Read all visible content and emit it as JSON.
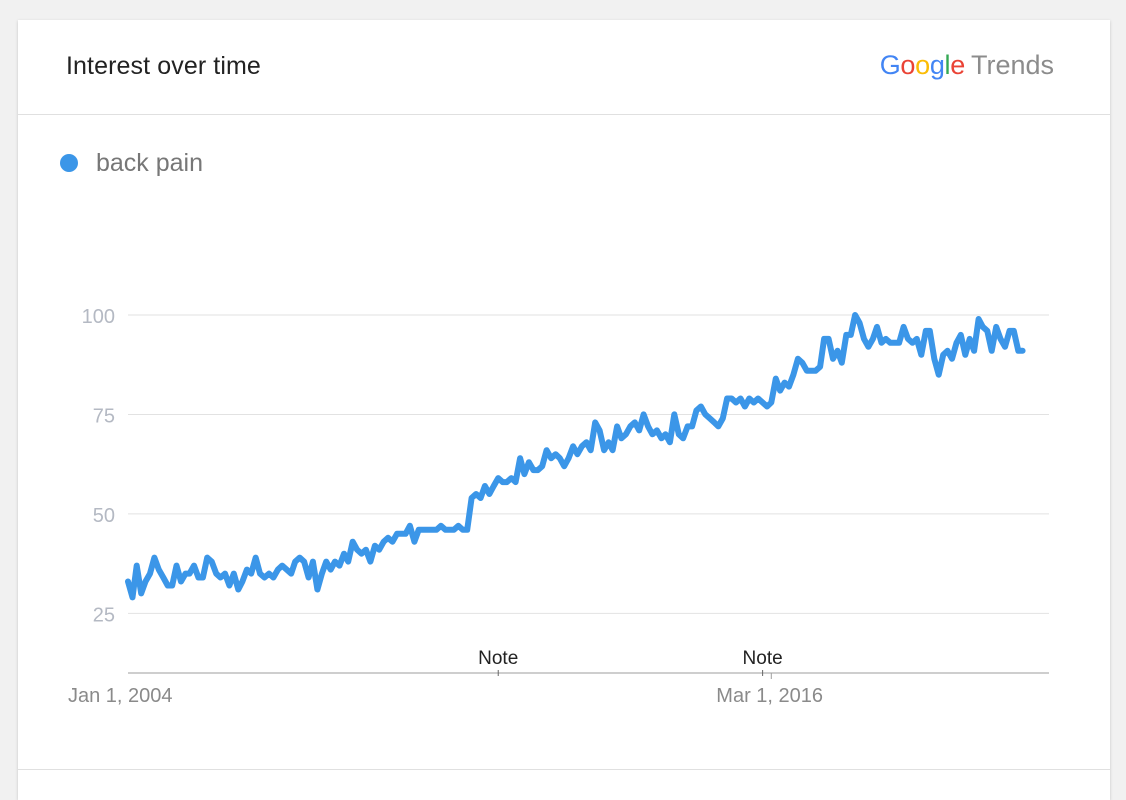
{
  "card": {
    "title": "Interest over time",
    "brand": {
      "google": "Google",
      "trends": "Trends"
    }
  },
  "legend": {
    "label": "back pain",
    "color": "#3b96e8"
  },
  "chart_data": {
    "type": "line",
    "title": "Interest over time",
    "xlabel": "",
    "ylabel": "",
    "ylim": [
      10,
      100
    ],
    "xlim": [
      "2004-01-01",
      "2021-06-01"
    ],
    "yticks": [
      100,
      75,
      50,
      25
    ],
    "xticks": [
      "Jan 1, 2004",
      "Mar 1, 2016"
    ],
    "notes": [
      {
        "label": "Note",
        "x": "2011-01-01"
      },
      {
        "label": "Note",
        "x": "2016-01-01"
      }
    ],
    "grid": true,
    "legend_position": "top-left",
    "series": [
      {
        "name": "back pain",
        "color": "#3b96e8",
        "start": "2004-01-01",
        "frequency": "monthly",
        "values": [
          33,
          29,
          37,
          30,
          33,
          35,
          39,
          36,
          34,
          32,
          32,
          37,
          33,
          35,
          35,
          37,
          34,
          34,
          39,
          38,
          35,
          34,
          35,
          32,
          35,
          31,
          33,
          36,
          35,
          39,
          35,
          34,
          35,
          34,
          36,
          37,
          36,
          35,
          38,
          39,
          38,
          34,
          38,
          31,
          35,
          38,
          36,
          38,
          37,
          40,
          38,
          43,
          41,
          40,
          41,
          38,
          42,
          41,
          43,
          44,
          43,
          45,
          45,
          45,
          47,
          43,
          46,
          46,
          46,
          46,
          46,
          47,
          46,
          46,
          46,
          47,
          46,
          46,
          54,
          55,
          54,
          57,
          55,
          57,
          59,
          58,
          58,
          59,
          58,
          64,
          60,
          63,
          61,
          61,
          62,
          66,
          64,
          65,
          64,
          62,
          64,
          67,
          65,
          67,
          68,
          66,
          73,
          71,
          66,
          68,
          66,
          72,
          69,
          70,
          72,
          73,
          71,
          75,
          72,
          70,
          71,
          69,
          70,
          68,
          75,
          70,
          69,
          72,
          72,
          76,
          77,
          75,
          74,
          73,
          72,
          74,
          79,
          79,
          78,
          79,
          77,
          79,
          78,
          79,
          78,
          77,
          78,
          84,
          81,
          83,
          82,
          85,
          89,
          88,
          86,
          86,
          86,
          87,
          94,
          94,
          89,
          91,
          88,
          95,
          95,
          100,
          98,
          94,
          92,
          94,
          97,
          93,
          94,
          93,
          93,
          93,
          97,
          94,
          93,
          94,
          90,
          96,
          96,
          89,
          85,
          90,
          91,
          89,
          93,
          95,
          90,
          94,
          91,
          99,
          97,
          96,
          91,
          97,
          94,
          92,
          96,
          96,
          91,
          91
        ]
      }
    ]
  }
}
